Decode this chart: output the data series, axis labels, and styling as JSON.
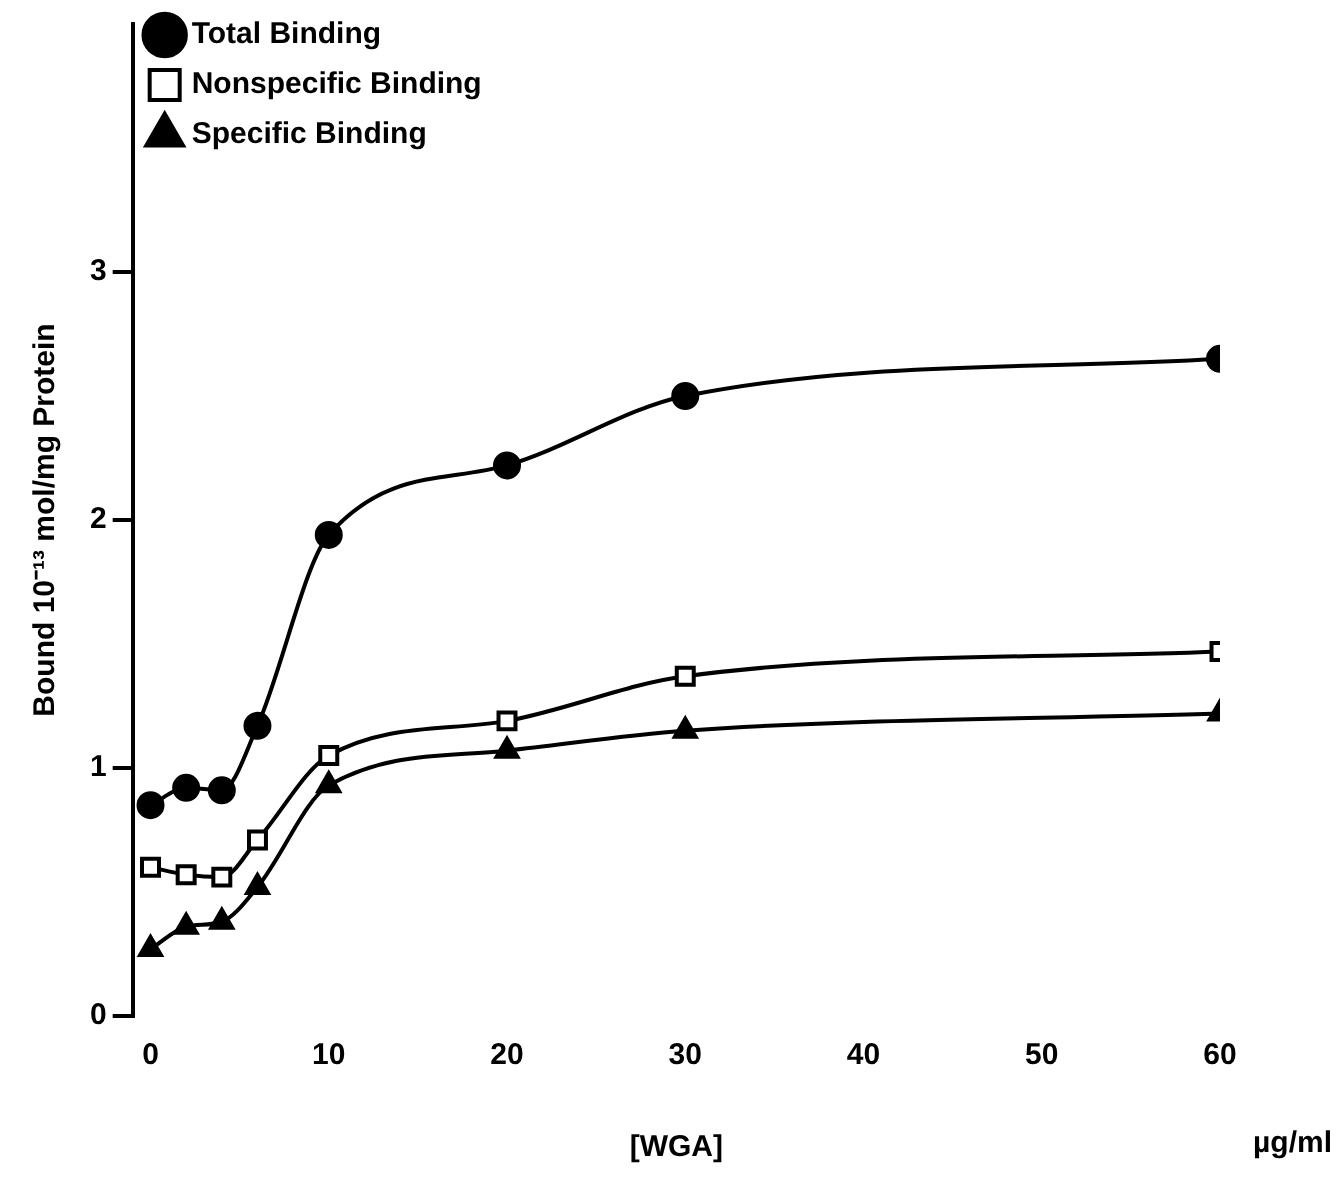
{
  "chart_data": {
    "type": "line",
    "xlabel": "[WGA]",
    "ylabel": "Bound 10⁻¹³ mol/mg Protein",
    "annotations": [
      "µg/ml"
    ],
    "x": [
      0,
      2,
      4,
      6,
      10,
      20,
      30,
      60
    ],
    "series": [
      {
        "name": "Total Binding",
        "color": "#000000",
        "marker": "circle",
        "values": [
          0.85,
          0.92,
          0.91,
          1.17,
          1.94,
          2.22,
          2.5,
          2.65
        ]
      },
      {
        "name": "Nonspecific Binding",
        "color": "#000000",
        "marker": "square",
        "values": [
          0.6,
          0.57,
          0.56,
          0.71,
          1.05,
          1.19,
          1.37,
          1.47
        ]
      },
      {
        "name": "Specific Binding",
        "color": "#000000",
        "marker": "triangle",
        "values": [
          0.27,
          0.36,
          0.38,
          0.52,
          0.93,
          1.07,
          1.15,
          1.22
        ]
      }
    ],
    "xlim": [
      -1,
      60
    ],
    "xticks": [
      0,
      10,
      20,
      30,
      40,
      50,
      60
    ],
    "ylim": [
      0,
      4
    ],
    "yticks": [
      0,
      1,
      2,
      3
    ],
    "grid": false,
    "legend": "top left"
  }
}
